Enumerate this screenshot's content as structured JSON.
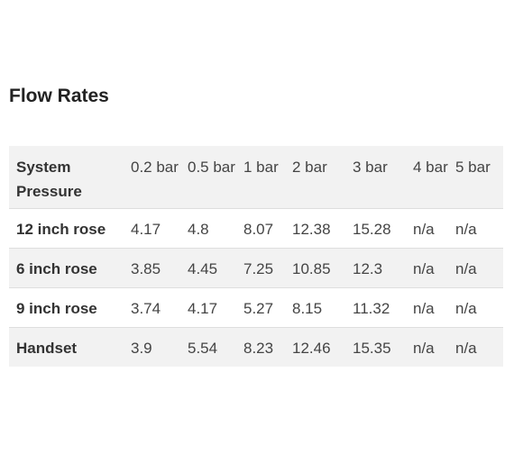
{
  "title": "Flow Rates",
  "table": {
    "headers": [
      "System Pressure",
      "0.2 bar",
      "0.5 bar",
      "1 bar",
      "2 bar",
      "3 bar",
      "4 bar",
      "5 bar"
    ],
    "rows": [
      [
        "12 inch rose",
        "4.17",
        "4.8",
        "8.07",
        "12.38",
        "15.28",
        "n/a",
        "n/a"
      ],
      [
        "6 inch rose",
        "3.85",
        "4.45",
        "7.25",
        "10.85",
        "12.3",
        "n/a",
        "n/a"
      ],
      [
        "9 inch rose",
        "3.74",
        "4.17",
        "5.27",
        "8.15",
        "11.32",
        "n/a",
        "n/a"
      ],
      [
        "Handset",
        "3.9",
        "5.54",
        "8.23",
        "12.46",
        "15.35",
        "n/a",
        "n/a"
      ]
    ]
  },
  "colors": {
    "stripe": "#f2f2f2",
    "border": "#dedede",
    "text": "#333333"
  }
}
